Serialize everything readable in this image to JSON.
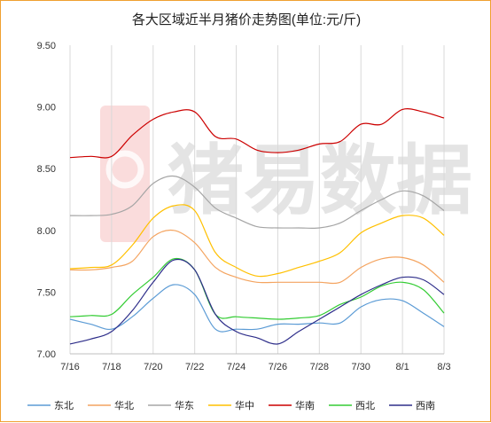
{
  "chart_data": {
    "type": "line",
    "title": "各大区域近半月猪价走势图(单位:元/斤)",
    "xlabel": "",
    "ylabel": "",
    "ylim": [
      7.0,
      9.5
    ],
    "yticks": [
      "9.50",
      "9.00",
      "8.50",
      "8.00",
      "7.50",
      "7.00"
    ],
    "x_labels": [
      "7/16",
      "7/18",
      "7/20",
      "7/22",
      "7/24",
      "7/26",
      "7/28",
      "7/30",
      "8/1",
      "8/3"
    ],
    "x_points": [
      "7/16",
      "7/17",
      "7/18",
      "7/19",
      "7/20",
      "7/21",
      "7/22",
      "7/23",
      "7/24",
      "7/25",
      "7/26",
      "7/27",
      "7/28",
      "7/29",
      "7/30",
      "7/31",
      "8/1",
      "8/2",
      "8/3"
    ],
    "grid": "vertical",
    "legend_position": "bottom",
    "series": [
      {
        "name": "东北",
        "color": "#5b9bd5",
        "values": [
          7.28,
          7.24,
          7.2,
          7.3,
          7.45,
          7.56,
          7.48,
          7.2,
          7.2,
          7.2,
          7.24,
          7.24,
          7.25,
          7.25,
          7.38,
          7.44,
          7.43,
          7.33,
          7.22
        ]
      },
      {
        "name": "华北",
        "color": "#f4a460",
        "values": [
          7.68,
          7.68,
          7.7,
          7.75,
          7.95,
          8.0,
          7.9,
          7.7,
          7.62,
          7.58,
          7.58,
          7.58,
          7.58,
          7.58,
          7.7,
          7.77,
          7.78,
          7.72,
          7.58
        ]
      },
      {
        "name": "华东",
        "color": "#a5a5a5",
        "values": [
          8.12,
          8.12,
          8.13,
          8.2,
          8.38,
          8.44,
          8.35,
          8.18,
          8.1,
          8.03,
          8.02,
          8.02,
          8.02,
          8.06,
          8.16,
          8.25,
          8.32,
          8.28,
          8.16
        ]
      },
      {
        "name": "华中",
        "color": "#ffc000",
        "values": [
          7.69,
          7.7,
          7.72,
          7.88,
          8.1,
          8.2,
          8.16,
          7.82,
          7.7,
          7.63,
          7.65,
          7.7,
          7.75,
          7.82,
          7.98,
          8.06,
          8.12,
          8.1,
          7.96
        ]
      },
      {
        "name": "华南",
        "color": "#cc0000",
        "values": [
          8.59,
          8.6,
          8.6,
          8.77,
          8.9,
          8.96,
          8.96,
          8.76,
          8.74,
          8.65,
          8.63,
          8.65,
          8.7,
          8.72,
          8.86,
          8.86,
          8.98,
          8.96,
          8.91
        ]
      },
      {
        "name": "西北",
        "color": "#33cc33",
        "values": [
          7.3,
          7.31,
          7.32,
          7.48,
          7.62,
          7.77,
          7.68,
          7.32,
          7.3,
          7.29,
          7.28,
          7.29,
          7.31,
          7.4,
          7.46,
          7.55,
          7.58,
          7.52,
          7.33
        ]
      },
      {
        "name": "西南",
        "color": "#2e2e8a",
        "values": [
          7.08,
          7.12,
          7.18,
          7.35,
          7.58,
          7.76,
          7.68,
          7.32,
          7.18,
          7.13,
          7.08,
          7.18,
          7.28,
          7.38,
          7.48,
          7.56,
          7.62,
          7.6,
          7.48
        ]
      }
    ]
  },
  "watermark": {
    "text": "猪易数据",
    "logo_color": "#f2a0a0"
  }
}
